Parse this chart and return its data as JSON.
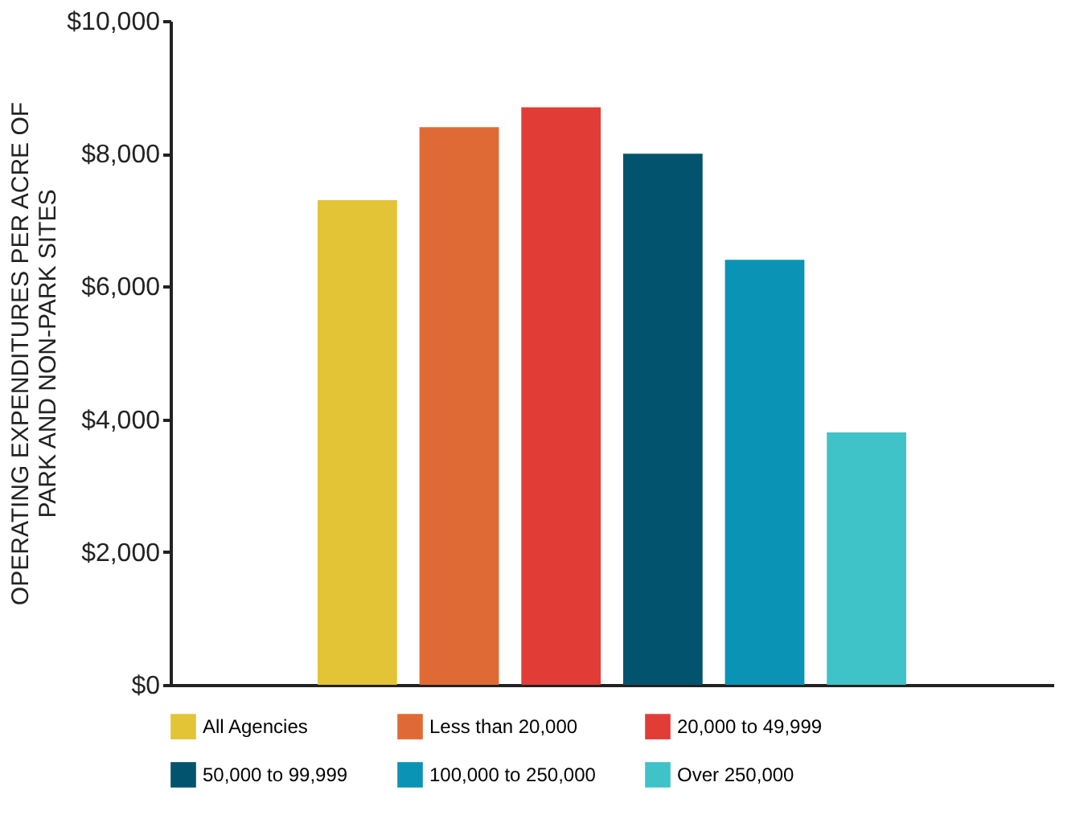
{
  "chart_data": {
    "type": "bar",
    "ylabel": "OPERATING EXPENDITURES PER ACRE OF PARK AND NON-PARK SITES",
    "categories": [
      null
    ],
    "series": [
      {
        "name": "All Agencies",
        "color": "#e3c436",
        "values": [
          7300
        ]
      },
      {
        "name": "Less than 20,000",
        "color": "#e06a35",
        "values": [
          8400
        ]
      },
      {
        "name": "20,000 to 49,999",
        "color": "#e23c37",
        "values": [
          8700
        ]
      },
      {
        "name": "50,000 to 99,999",
        "color": "#02536e",
        "values": [
          8000
        ]
      },
      {
        "name": "100,000 to 250,000",
        "color": "#0b93b6",
        "values": [
          6400
        ]
      },
      {
        "name": "Over 250,000",
        "color": "#3fc3c8",
        "values": [
          3800
        ]
      }
    ],
    "ylim": [
      0,
      10000
    ],
    "yticks": [
      {
        "value": 0,
        "label": "$0"
      },
      {
        "value": 2000,
        "label": "$2,000"
      },
      {
        "value": 4000,
        "label": "$4,000"
      },
      {
        "value": 6000,
        "label": "$6,000"
      },
      {
        "value": 8000,
        "label": "$8,000"
      },
      {
        "value": 10000,
        "label": "$10,000"
      }
    ],
    "grid": false,
    "legend": "bottom"
  }
}
